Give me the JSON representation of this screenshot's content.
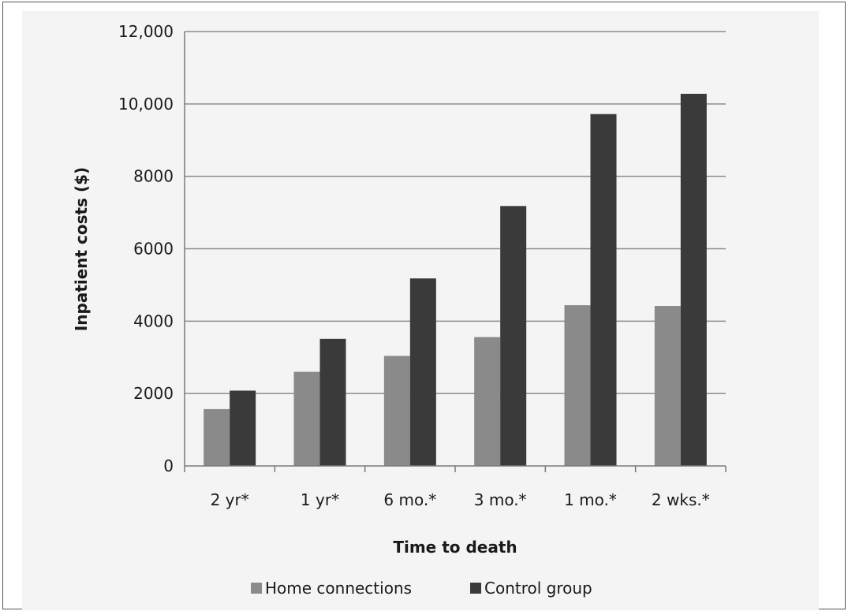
{
  "chart_data": {
    "type": "bar",
    "categories": [
      "2 yr*",
      "1 yr*",
      "6 mo.*",
      "3 mo.*",
      "1 mo.*",
      "2 wks.*"
    ],
    "series": [
      {
        "name": "Home connections",
        "color": "#8a8a8a",
        "values": [
          1570,
          2600,
          3040,
          3560,
          4440,
          4420
        ]
      },
      {
        "name": "Control group",
        "color": "#3a3a3a",
        "values": [
          2080,
          3510,
          5180,
          7180,
          9720,
          10280
        ]
      }
    ],
    "xlabel": "Time to death",
    "ylabel": "Inpatient costs ($)",
    "ylim": [
      0,
      12000
    ],
    "yticks": [
      {
        "value": 0,
        "label": "0"
      },
      {
        "value": 2000,
        "label": "2000"
      },
      {
        "value": 4000,
        "label": "4000"
      },
      {
        "value": 6000,
        "label": "6000"
      },
      {
        "value": 8000,
        "label": "8000"
      },
      {
        "value": 10000,
        "label": "10,000"
      },
      {
        "value": 12000,
        "label": "12,000"
      }
    ],
    "grid": true,
    "legend_position": "bottom"
  }
}
